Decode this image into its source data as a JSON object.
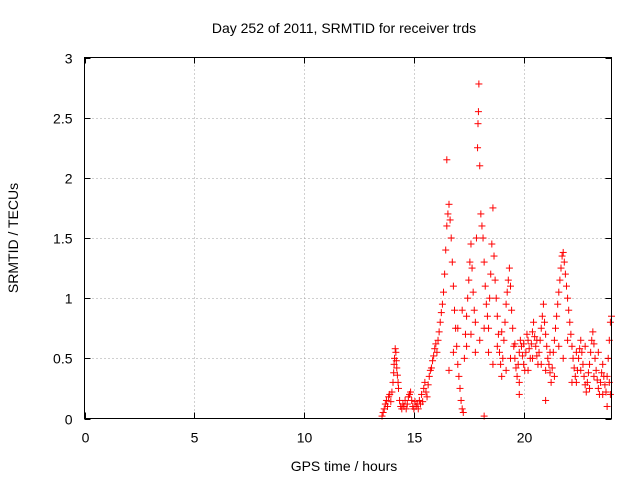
{
  "chart_data": {
    "type": "scatter",
    "title": "Day 252 of 2011, SRMTID for receiver trds",
    "xlabel": "GPS time / hours",
    "ylabel": "SRMTID / TECUs",
    "xlim": [
      0,
      24
    ],
    "ylim": [
      0,
      3
    ],
    "xticks": [
      0,
      5,
      10,
      15,
      20
    ],
    "yticks": [
      0,
      0.5,
      1,
      1.5,
      2,
      2.5,
      3
    ],
    "xtick_labels": [
      "0",
      "5",
      "10",
      "15",
      "20"
    ],
    "ytick_labels": [
      "0",
      "0.5",
      "1",
      "1.5",
      "2",
      "2.5",
      "3"
    ],
    "grid": true,
    "marker": "+",
    "color": "#ff0000",
    "series": [
      {
        "name": "SRMTID",
        "points": [
          [
            13.55,
            0.02
          ],
          [
            13.6,
            0.05
          ],
          [
            13.65,
            0.08
          ],
          [
            13.7,
            0.12
          ],
          [
            13.75,
            0.15
          ],
          [
            13.8,
            0.1
          ],
          [
            13.85,
            0.18
          ],
          [
            13.9,
            0.2
          ],
          [
            13.95,
            0.14
          ],
          [
            14.0,
            0.22
          ],
          [
            14.05,
            0.3
          ],
          [
            14.08,
            0.38
          ],
          [
            14.1,
            0.45
          ],
          [
            14.12,
            0.5
          ],
          [
            14.15,
            0.58
          ],
          [
            14.18,
            0.55
          ],
          [
            14.2,
            0.48
          ],
          [
            14.22,
            0.42
          ],
          [
            14.25,
            0.36
          ],
          [
            14.28,
            0.3
          ],
          [
            14.3,
            0.25
          ],
          [
            14.35,
            0.15
          ],
          [
            14.4,
            0.1
          ],
          [
            14.45,
            0.08
          ],
          [
            14.5,
            0.12
          ],
          [
            14.55,
            0.1
          ],
          [
            14.6,
            0.15
          ],
          [
            14.65,
            0.08
          ],
          [
            14.7,
            0.12
          ],
          [
            14.75,
            0.18
          ],
          [
            14.8,
            0.2
          ],
          [
            14.85,
            0.22
          ],
          [
            14.9,
            0.15
          ],
          [
            14.95,
            0.1
          ],
          [
            15.0,
            0.08
          ],
          [
            15.05,
            0.14
          ],
          [
            15.1,
            0.1
          ],
          [
            15.15,
            0.12
          ],
          [
            15.2,
            0.08
          ],
          [
            15.25,
            0.15
          ],
          [
            15.3,
            0.12
          ],
          [
            15.35,
            0.2
          ],
          [
            15.4,
            0.14
          ],
          [
            15.45,
            0.25
          ],
          [
            15.5,
            0.3
          ],
          [
            15.55,
            0.22
          ],
          [
            15.6,
            0.18
          ],
          [
            15.65,
            0.28
          ],
          [
            15.7,
            0.35
          ],
          [
            15.75,
            0.4
          ],
          [
            15.8,
            0.42
          ],
          [
            15.85,
            0.48
          ],
          [
            15.9,
            0.52
          ],
          [
            15.95,
            0.58
          ],
          [
            16.0,
            0.62
          ],
          [
            16.05,
            0.55
          ],
          [
            16.1,
            0.65
          ],
          [
            16.15,
            0.72
          ],
          [
            16.2,
            0.8
          ],
          [
            16.25,
            0.88
          ],
          [
            16.3,
            0.95
          ],
          [
            16.35,
            1.05
          ],
          [
            16.4,
            1.2
          ],
          [
            16.45,
            1.4
          ],
          [
            16.5,
            1.6
          ],
          [
            16.55,
            1.7
          ],
          [
            16.6,
            1.78
          ],
          [
            16.65,
            1.65
          ],
          [
            16.7,
            1.5
          ],
          [
            16.75,
            1.3
          ],
          [
            16.8,
            1.1
          ],
          [
            16.85,
            0.9
          ],
          [
            16.9,
            0.75
          ],
          [
            16.95,
            0.6
          ],
          [
            17.0,
            0.45
          ],
          [
            17.05,
            0.35
          ],
          [
            17.1,
            0.25
          ],
          [
            17.15,
            0.15
          ],
          [
            17.2,
            0.08
          ],
          [
            17.25,
            0.05
          ],
          [
            16.5,
            2.15
          ],
          [
            17.3,
            0.5
          ],
          [
            17.35,
            0.7
          ],
          [
            17.4,
            0.85
          ],
          [
            17.45,
            1.0
          ],
          [
            17.5,
            1.15
          ],
          [
            17.55,
            1.3
          ],
          [
            17.6,
            1.45
          ],
          [
            17.65,
            1.25
          ],
          [
            17.7,
            1.05
          ],
          [
            17.75,
            0.9
          ],
          [
            17.8,
            0.8
          ],
          [
            17.85,
            1.5
          ],
          [
            17.9,
            2.25
          ],
          [
            17.92,
            2.45
          ],
          [
            17.94,
            2.55
          ],
          [
            17.96,
            2.78
          ],
          [
            18.0,
            2.1
          ],
          [
            18.05,
            1.7
          ],
          [
            18.1,
            1.6
          ],
          [
            18.15,
            1.5
          ],
          [
            18.2,
            1.3
          ],
          [
            18.25,
            1.1
          ],
          [
            18.3,
            0.95
          ],
          [
            18.35,
            0.85
          ],
          [
            18.4,
            0.75
          ],
          [
            18.45,
            1.0
          ],
          [
            18.5,
            1.2
          ],
          [
            18.55,
            1.45
          ],
          [
            18.6,
            1.75
          ],
          [
            18.65,
            1.35
          ],
          [
            18.7,
            1.15
          ],
          [
            18.75,
            1.0
          ],
          [
            18.8,
            0.85
          ],
          [
            18.85,
            0.7
          ],
          [
            18.9,
            0.55
          ],
          [
            18.95,
            0.45
          ],
          [
            19.0,
            0.35
          ],
          [
            19.05,
            0.5
          ],
          [
            19.1,
            0.65
          ],
          [
            19.15,
            0.8
          ],
          [
            19.2,
            0.95
          ],
          [
            19.25,
            1.05
          ],
          [
            19.3,
            1.15
          ],
          [
            19.35,
            1.25
          ],
          [
            19.4,
            1.1
          ],
          [
            19.45,
            0.9
          ],
          [
            19.5,
            0.75
          ],
          [
            19.55,
            0.6
          ],
          [
            19.6,
            0.5
          ],
          [
            19.65,
            0.42
          ],
          [
            19.7,
            0.35
          ],
          [
            19.75,
            0.45
          ],
          [
            19.8,
            0.55
          ],
          [
            19.85,
            0.65
          ],
          [
            19.9,
            0.6
          ],
          [
            19.95,
            0.52
          ],
          [
            20.0,
            0.45
          ],
          [
            20.05,
            0.4
          ],
          [
            20.1,
            0.55
          ],
          [
            20.15,
            0.7
          ],
          [
            20.2,
            0.65
          ],
          [
            20.25,
            0.58
          ],
          [
            20.3,
            0.5
          ],
          [
            20.35,
            0.62
          ],
          [
            20.4,
            0.72
          ],
          [
            20.45,
            0.8
          ],
          [
            20.5,
            0.68
          ],
          [
            20.55,
            0.6
          ],
          [
            20.6,
            0.52
          ],
          [
            20.65,
            0.45
          ],
          [
            20.7,
            0.55
          ],
          [
            20.75,
            0.65
          ],
          [
            20.8,
            0.75
          ],
          [
            20.85,
            0.85
          ],
          [
            20.9,
            0.95
          ],
          [
            20.95,
            0.8
          ],
          [
            21.0,
            0.7
          ],
          [
            21.05,
            0.6
          ],
          [
            21.1,
            0.5
          ],
          [
            21.15,
            0.45
          ],
          [
            21.2,
            0.38
          ],
          [
            21.25,
            0.3
          ],
          [
            21.3,
            0.42
          ],
          [
            21.35,
            0.55
          ],
          [
            21.4,
            0.65
          ],
          [
            21.45,
            0.75
          ],
          [
            21.5,
            0.85
          ],
          [
            21.55,
            0.95
          ],
          [
            21.6,
            1.05
          ],
          [
            21.65,
            1.15
          ],
          [
            21.7,
            1.25
          ],
          [
            21.75,
            1.35
          ],
          [
            21.8,
            1.38
          ],
          [
            21.85,
            1.3
          ],
          [
            21.9,
            1.2
          ],
          [
            21.95,
            1.1
          ],
          [
            22.0,
            1.0
          ],
          [
            22.05,
            0.9
          ],
          [
            22.1,
            0.8
          ],
          [
            22.15,
            0.7
          ],
          [
            22.2,
            0.6
          ],
          [
            22.25,
            0.5
          ],
          [
            22.3,
            0.42
          ],
          [
            22.35,
            0.35
          ],
          [
            22.4,
            0.3
          ],
          [
            22.45,
            0.4
          ],
          [
            22.5,
            0.5
          ],
          [
            22.55,
            0.58
          ],
          [
            22.6,
            0.65
          ],
          [
            22.65,
            0.55
          ],
          [
            22.7,
            0.45
          ],
          [
            22.75,
            0.35
          ],
          [
            22.8,
            0.28
          ],
          [
            22.85,
            0.22
          ],
          [
            22.9,
            0.3
          ],
          [
            22.95,
            0.38
          ],
          [
            23.0,
            0.45
          ],
          [
            23.05,
            0.55
          ],
          [
            23.1,
            0.65
          ],
          [
            23.15,
            0.72
          ],
          [
            23.2,
            0.62
          ],
          [
            23.25,
            0.5
          ],
          [
            23.3,
            0.4
          ],
          [
            23.35,
            0.32
          ],
          [
            23.4,
            0.25
          ],
          [
            23.45,
            0.2
          ],
          [
            23.5,
            0.3
          ],
          [
            23.55,
            0.38
          ],
          [
            23.6,
            0.45
          ],
          [
            23.65,
            0.35
          ],
          [
            23.7,
            0.28
          ],
          [
            23.75,
            0.22
          ],
          [
            23.8,
            0.35
          ],
          [
            23.85,
            0.5
          ],
          [
            23.9,
            0.65
          ],
          [
            23.95,
            0.8
          ],
          [
            24.0,
            0.85
          ],
          [
            23.9,
            0.3
          ],
          [
            23.95,
            0.2
          ],
          [
            16.6,
            0.4
          ],
          [
            16.8,
            0.55
          ],
          [
            17.0,
            0.75
          ],
          [
            17.2,
            0.9
          ],
          [
            17.4,
            0.6
          ],
          [
            17.6,
            0.7
          ],
          [
            17.8,
            0.55
          ],
          [
            18.0,
            0.65
          ],
          [
            18.2,
            0.75
          ],
          [
            18.4,
            0.55
          ],
          [
            18.6,
            0.45
          ],
          [
            18.8,
            0.6
          ],
          [
            19.0,
            0.72
          ],
          [
            19.2,
            0.4
          ],
          [
            19.4,
            0.5
          ],
          [
            19.6,
            0.62
          ],
          [
            19.8,
            0.3
          ],
          [
            20.0,
            0.62
          ],
          [
            20.2,
            0.4
          ],
          [
            20.4,
            0.5
          ],
          [
            20.6,
            0.65
          ],
          [
            20.8,
            0.45
          ],
          [
            21.0,
            0.4
          ],
          [
            21.2,
            0.55
          ],
          [
            21.4,
            0.35
          ],
          [
            21.6,
            0.6
          ],
          [
            21.8,
            0.5
          ],
          [
            22.0,
            0.65
          ],
          [
            22.2,
            0.3
          ],
          [
            22.4,
            0.55
          ],
          [
            22.6,
            0.4
          ],
          [
            22.8,
            0.6
          ],
          [
            23.0,
            0.25
          ],
          [
            23.2,
            0.35
          ],
          [
            23.4,
            0.55
          ],
          [
            23.6,
            0.2
          ],
          [
            23.8,
            0.1
          ],
          [
            18.2,
            0.02
          ],
          [
            19.8,
            0.2
          ],
          [
            21.0,
            0.15
          ]
        ]
      }
    ]
  }
}
